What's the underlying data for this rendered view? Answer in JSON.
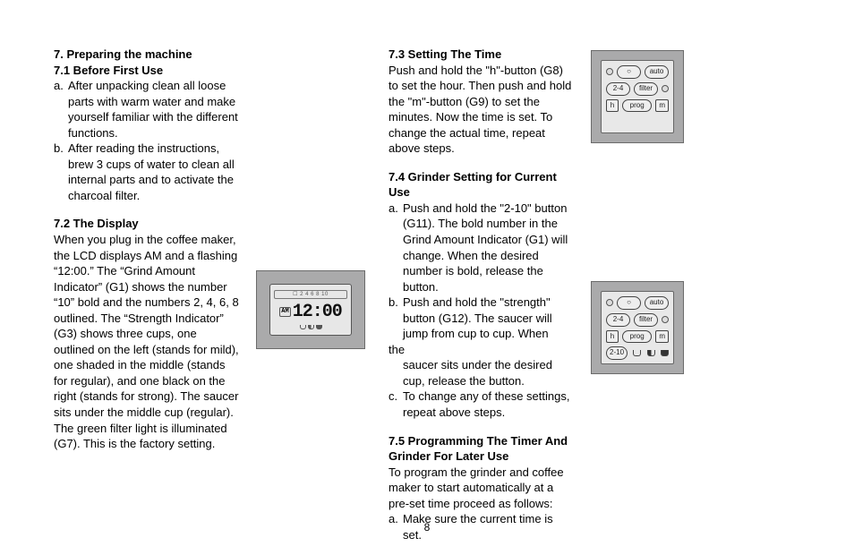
{
  "page_number": "8",
  "col1": {
    "h7": "7. Preparing the machine",
    "h71": "7.1 Before First Use",
    "a_lab": "a.",
    "a_txt": "After unpacking clean all loose parts with warm water and make yourself familiar with the different functions.",
    "b_lab": "b.",
    "b_txt": "After reading the instructions, brew 3 cups of water to clean all internal parts and to activate the charcoal filter.",
    "h72": "7.2 The Display",
    "p72": "When you plug in the coffee maker, the LCD displays AM and a flashing “12:00.” The “Grind Amount Indicator” (G1) shows the number “10” bold and the numbers 2, 4, 6, 8 outlined. The “Strength Indicator” (G3) shows three cups, one outlined on the left (stands for mild), one shaded in the middle (stands for regular), and one black on the right (stands for strong). The saucer sits under the middle cup (regular). The green filter light is illuminated (G7). This is the factory setting."
  },
  "col3": {
    "h73": "7.3 Setting The Time",
    "p73": "Push and hold the \"h\"-button (G8) to set the hour. Then push and hold the \"m\"-button (G9) to set the minutes. Now the time is set. To change the actual time, repeat above steps.",
    "h74": "7.4 Grinder Setting for Current Use",
    "a_lab": "a.",
    "a_txt": "Push and hold the \"2-10\" button (G11). The bold number in the Grind Amount Indicator (G1) will change. When the desired number is bold, release the button.",
    "b_lab": "b.",
    "b_txt": "Push and hold the \"strength\" button (G12). The saucer will jump from cup to cup. When",
    "the": "the",
    "b_txt2": "saucer sits under the desired cup, release the button.",
    "c_lab": "c.",
    "c_txt": "To change any of these settings, repeat above steps.",
    "h75a": "7.5 Programming The Timer And",
    "h75b": "Grinder For Later Use",
    "p75": "To program the grinder and coffee maker to start automatically at a pre-set time proceed as follows:",
    "a75_lab": "a.",
    "a75_txt": "Make sure the current time is set."
  },
  "lcd": {
    "top": "☐ 2 4 6 8 10",
    "am": "AM",
    "time": "12:00"
  },
  "panel": {
    "r1a": "○",
    "r1b": "auto",
    "r2a": "2-4",
    "r2b": "filter",
    "r3a": "h",
    "r3b": "prog",
    "r3c": "m",
    "r4a": "2-10",
    "r4cups": true
  },
  "panel2_has_row4": true,
  "colors": {
    "page_bg": "#ffffff",
    "text": "#000000",
    "fig_bg": "#aaaaab",
    "fig_border": "#6b6b6b",
    "fig_inner_bg": "#e7e7e7",
    "fig_inner_border": "#555555"
  }
}
